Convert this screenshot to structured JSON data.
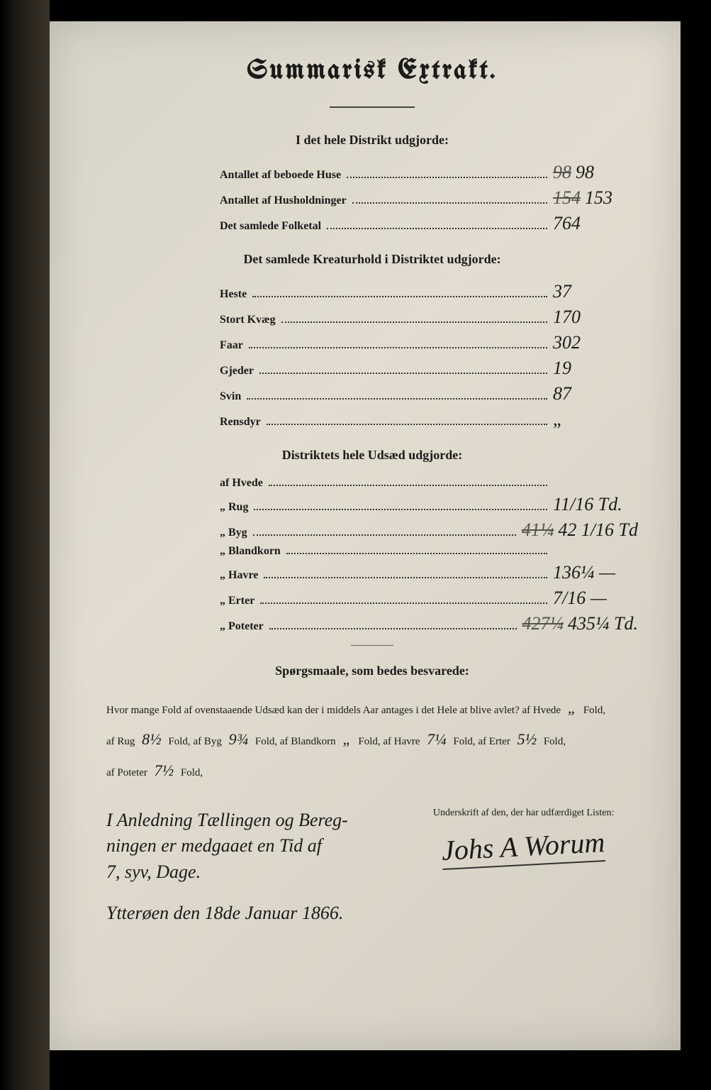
{
  "title": "Summarisk Extrakt.",
  "section1": {
    "heading": "I det hele Distrikt udgjorde:",
    "rows": [
      {
        "label": "Antallet af beboede Huse",
        "strike": "98",
        "value": "98"
      },
      {
        "label": "Antallet af Husholdninger",
        "strike": "154",
        "value": "153"
      },
      {
        "label": "Det samlede Folketal",
        "strike": "",
        "value": "764"
      }
    ]
  },
  "section2": {
    "heading": "Det samlede Kreaturhold i Distriktet udgjorde:",
    "rows": [
      {
        "label": "Heste",
        "value": "37"
      },
      {
        "label": "Stort Kvæg",
        "value": "170"
      },
      {
        "label": "Faar",
        "value": "302"
      },
      {
        "label": "Gjeder",
        "value": "19"
      },
      {
        "label": "Svin",
        "value": "87"
      },
      {
        "label": "Rensdyr",
        "value": "„"
      }
    ]
  },
  "section3": {
    "heading": "Distriktets hele Udsæd udgjorde:",
    "rows": [
      {
        "label": "af Hvede",
        "value": ""
      },
      {
        "label": "„ Rug",
        "value": "11/16 Td."
      },
      {
        "label": "„ Byg",
        "strike": "41¼",
        "value": "42 1/16 Td"
      },
      {
        "label": "„ Blandkorn",
        "value": ""
      },
      {
        "label": "„ Havre",
        "value": "136¼ —"
      },
      {
        "label": "„ Erter",
        "value": "7/16 —"
      },
      {
        "label": "„ Poteter",
        "strike": "427¼",
        "value": "435¼ Td."
      }
    ]
  },
  "section4": {
    "heading": "Spørgsmaale, som bedes besvarede:",
    "question_text": "Hvor mange Fold af ovenstaaende Udsæd kan der i middels Aar antages i det Hele at blive avlet?",
    "fields": [
      {
        "label": "af Hvede",
        "value": "„"
      },
      {
        "label": "af Rug",
        "value": "8½"
      },
      {
        "label": "af Byg",
        "value": "9¾"
      },
      {
        "label": "af Blandkorn",
        "value": "„"
      },
      {
        "label": "af Havre",
        "value": "7¼"
      },
      {
        "label": "af Erter",
        "value": "5½"
      },
      {
        "label": "af Poteter",
        "value": "7½"
      }
    ],
    "fold_word": "Fold,"
  },
  "sig": {
    "left_line1": "I Anledning Tællingen og Bereg-",
    "left_line2": "ningen er medgaaet en Tid af",
    "left_line3": "7, syv, Dage.",
    "right_caption": "Underskrift af den, der har udfærdiget Listen:",
    "signature": "Johs A Worum",
    "dateline": "Ytterøen den 18de Januar 1866."
  }
}
